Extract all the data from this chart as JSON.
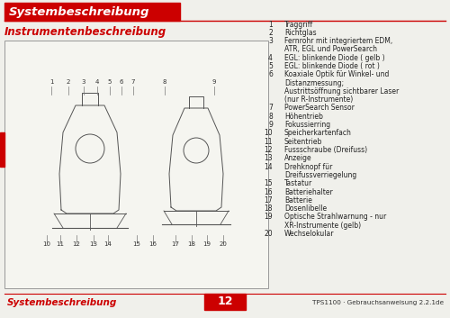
{
  "bg_color": "#f0f0eb",
  "title_banner_color": "#cc0000",
  "title_text": "Systembeschreibung",
  "title_text_color": "#ffffff",
  "subtitle_text": "Instrumentenbeschreibung",
  "subtitle_text_color": "#cc0000",
  "footer_left_text": "Systembeschreibung",
  "footer_left_color": "#cc0000",
  "footer_center_text": "12",
  "footer_center_bg": "#cc0000",
  "footer_center_text_color": "#ffffff",
  "footer_right_text": "TPS1100 · Gebrauchsanweisung 2.2.1de",
  "footer_right_color": "#333333",
  "red_bar_color": "#cc0000",
  "numbered_items": [
    [
      "1",
      "Traggriff"
    ],
    [
      "2",
      "Richtglas"
    ],
    [
      "3",
      "Fernrohr mit integriertem EDM,"
    ],
    [
      "",
      "ATR, EGL und PowerSearch"
    ],
    [
      "4",
      "EGL: blinkende Diode ( gelb )"
    ],
    [
      "5",
      "EGL: blinkende Diode ( rot )"
    ],
    [
      "6",
      "Koaxiale Optik für Winkel- und"
    ],
    [
      "",
      "Distanzmessung;"
    ],
    [
      "",
      "Austrittsöffnung sichtbarer Laser"
    ],
    [
      "",
      "(nur R-Instrumente)"
    ],
    [
      "7",
      "PowerSearch Sensor"
    ],
    [
      "8",
      "Höhentrieb"
    ],
    [
      "9",
      "Fokussierring"
    ],
    [
      "10",
      "Speicherkartenfach"
    ],
    [
      "11",
      "Seitentrieb"
    ],
    [
      "12",
      "Fussschraube (Dreifuss)"
    ],
    [
      "13",
      "Anzeige"
    ],
    [
      "14",
      "Drehknopf für"
    ],
    [
      "",
      "Dreifussverriegelung"
    ],
    [
      "15",
      "Tastatur"
    ],
    [
      "16",
      "Batteriehalter"
    ],
    [
      "17",
      "Batterie"
    ],
    [
      "18",
      "Dosenlibelle"
    ],
    [
      "19",
      "Optische Strahlwarnung - nur"
    ],
    [
      "",
      "XR-Instrumente (gelb)"
    ],
    [
      "20",
      "Wechselokular"
    ]
  ]
}
